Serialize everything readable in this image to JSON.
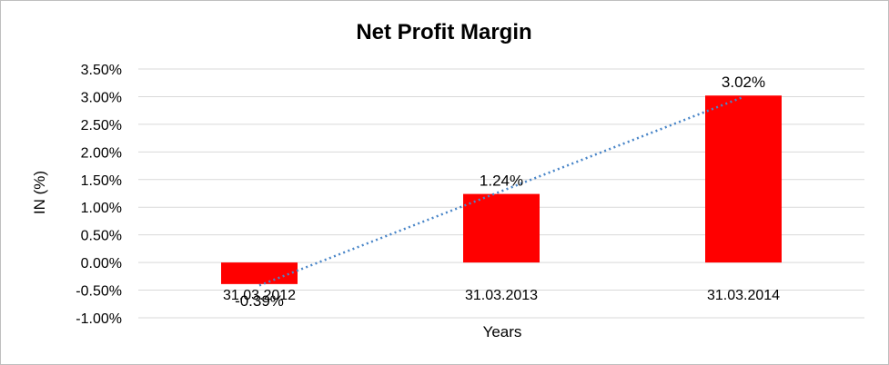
{
  "chart_data": {
    "type": "bar",
    "title": "Net Profit Margin",
    "xlabel": "Years",
    "ylabel": "IN (%)",
    "categories": [
      "31.03.2012",
      "31.03.2013",
      "31.03.2014"
    ],
    "values": [
      -0.39,
      1.24,
      3.02
    ],
    "data_labels": [
      "-0.39%",
      "1.24%",
      "3.02%"
    ],
    "y_ticks": [
      "3.50%",
      "3.00%",
      "2.50%",
      "2.00%",
      "1.50%",
      "1.00%",
      "0.50%",
      "0.00%",
      "-0.50%",
      "-1.00%"
    ],
    "ylim": [
      -1.0,
      3.5
    ],
    "grid": true,
    "trendline": "linear",
    "colors": {
      "bar": "#ff0000",
      "trendline": "#4a86c8",
      "grid": "#d9d9d9"
    }
  }
}
